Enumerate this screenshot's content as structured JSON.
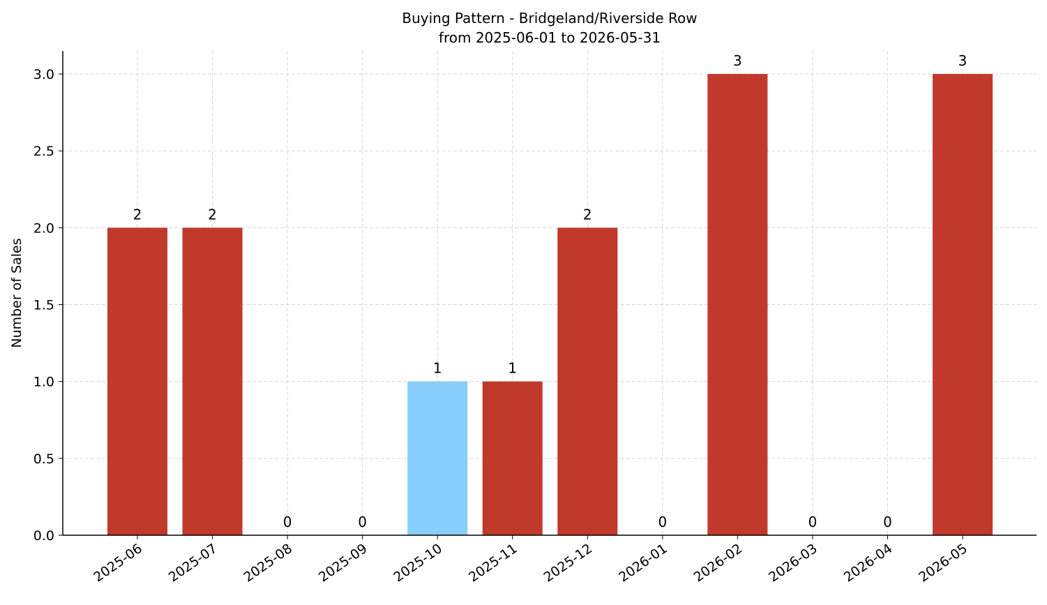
{
  "chart_data": {
    "type": "bar",
    "title": "Buying Pattern - Bridgeland/Riverside Row",
    "subtitle": "from 2025-06-01 to 2026-05-31",
    "y_label": "Number of Sales",
    "categories": [
      "2025-06",
      "2025-07",
      "2025-08",
      "2025-09",
      "2025-10",
      "2025-11",
      "2025-12",
      "2026-01",
      "2026-02",
      "2026-03",
      "2026-04",
      "2026-05"
    ],
    "values": [
      2,
      2,
      0,
      0,
      1,
      1,
      2,
      0,
      3,
      0,
      0,
      3
    ],
    "colors": [
      "#c0392b",
      "#c0392b",
      "#c0392b",
      "#c0392b",
      "#87cefa",
      "#c0392b",
      "#c0392b",
      "#c0392b",
      "#c0392b",
      "#c0392b",
      "#c0392b",
      "#c0392b"
    ],
    "ylim": [
      0,
      3.15
    ],
    "yticks": [
      {
        "value": 0,
        "label": "0.0"
      },
      0.5,
      {
        "value": 1,
        "label": "1.0"
      },
      1.5,
      {
        "value": 2,
        "label": "2.0"
      },
      2.5,
      {
        "value": 3,
        "label": "3.0"
      }
    ],
    "grid": true
  }
}
